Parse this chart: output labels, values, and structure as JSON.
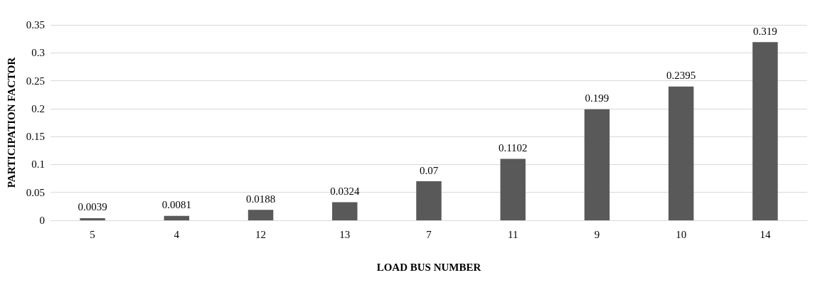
{
  "chart_data": {
    "type": "bar",
    "xlabel": "LOAD BUS NUMBER",
    "ylabel": "PARTICIPATION FACTOR",
    "categories": [
      "5",
      "4",
      "12",
      "13",
      "7",
      "11",
      "9",
      "10",
      "14"
    ],
    "values": [
      0.0039,
      0.0081,
      0.0188,
      0.0324,
      0.07,
      0.1102,
      0.199,
      0.2395,
      0.319
    ],
    "color": "#595959",
    "ylim": [
      0,
      0.35
    ],
    "yticks": [
      0,
      0.05,
      0.1,
      0.15,
      0.2,
      0.25,
      0.3,
      0.35
    ],
    "grid": "y",
    "data_labels": true
  }
}
